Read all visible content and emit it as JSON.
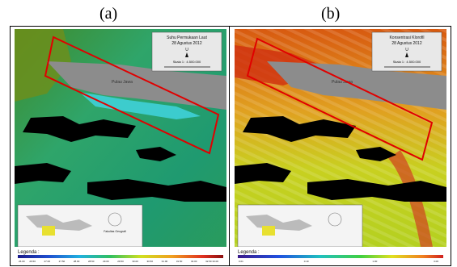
{
  "panels": [
    {
      "label": "(a)",
      "title_line1": "Suhu Permukaan Laut",
      "title_line2": "28 Agustus 2012",
      "north": "U",
      "scale": "Skala 1 : 4.500.000",
      "island_label": "Pulau Jawa",
      "legend_title": "Legenda :",
      "legend_ticks": [
        "26.00",
        "26.50",
        "27.00",
        "27.50",
        "28.00",
        "28.50",
        "29.00",
        "29.50",
        "30.00",
        "30.50",
        "31.00",
        "31.50",
        "32.00",
        "32.50",
        "33.00"
      ],
      "institution": "Fakultas Geografi\nUniversitas Gadjah Mada\nYogyakarta"
    },
    {
      "label": "(b)",
      "title_line1": "Konsentrasi Klorofil",
      "title_line2": "28 Agustus 2012",
      "north": "U",
      "scale": "Skala 1 : 4.500.000",
      "island_label": "Pulau Jawa",
      "legend_title": "Legenda :",
      "legend_ticks": [
        "0.01",
        "0.10",
        "1.00",
        "3.00"
      ],
      "institution": "Fakultas Geografi\nUniversitas Gadjah Mada\nYogyakarta"
    }
  ],
  "colors": {
    "highlight_box": "#e00000",
    "land": "#8c8c8c",
    "cloud": "#000000"
  }
}
